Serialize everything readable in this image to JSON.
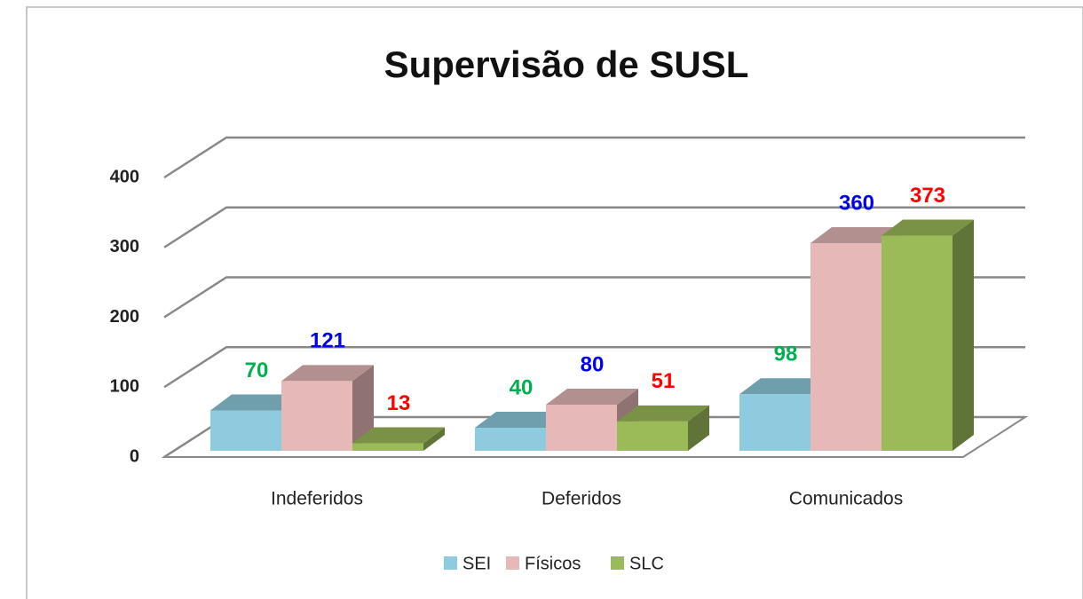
{
  "chart_data": {
    "type": "bar3d",
    "title": "Supervisão de SUSL",
    "categories": [
      "Indeferidos",
      "Deferidos",
      "Comunicados"
    ],
    "series": [
      {
        "name": "SEI",
        "color": "#8ecbde",
        "label_color": "#00b050",
        "values": [
          70,
          40,
          98
        ]
      },
      {
        "name": "Físicos",
        "color": "#e6b9b8",
        "label_color": "#0000ee",
        "values": [
          121,
          80,
          360
        ]
      },
      {
        "name": "SLC",
        "color": "#9bbb59",
        "label_color": "#ff0000",
        "values": [
          13,
          51,
          373
        ]
      }
    ],
    "ylim": [
      0,
      400
    ],
    "yticks": [
      0,
      100,
      200,
      300,
      400
    ],
    "grid": true,
    "legend": "bottom"
  }
}
